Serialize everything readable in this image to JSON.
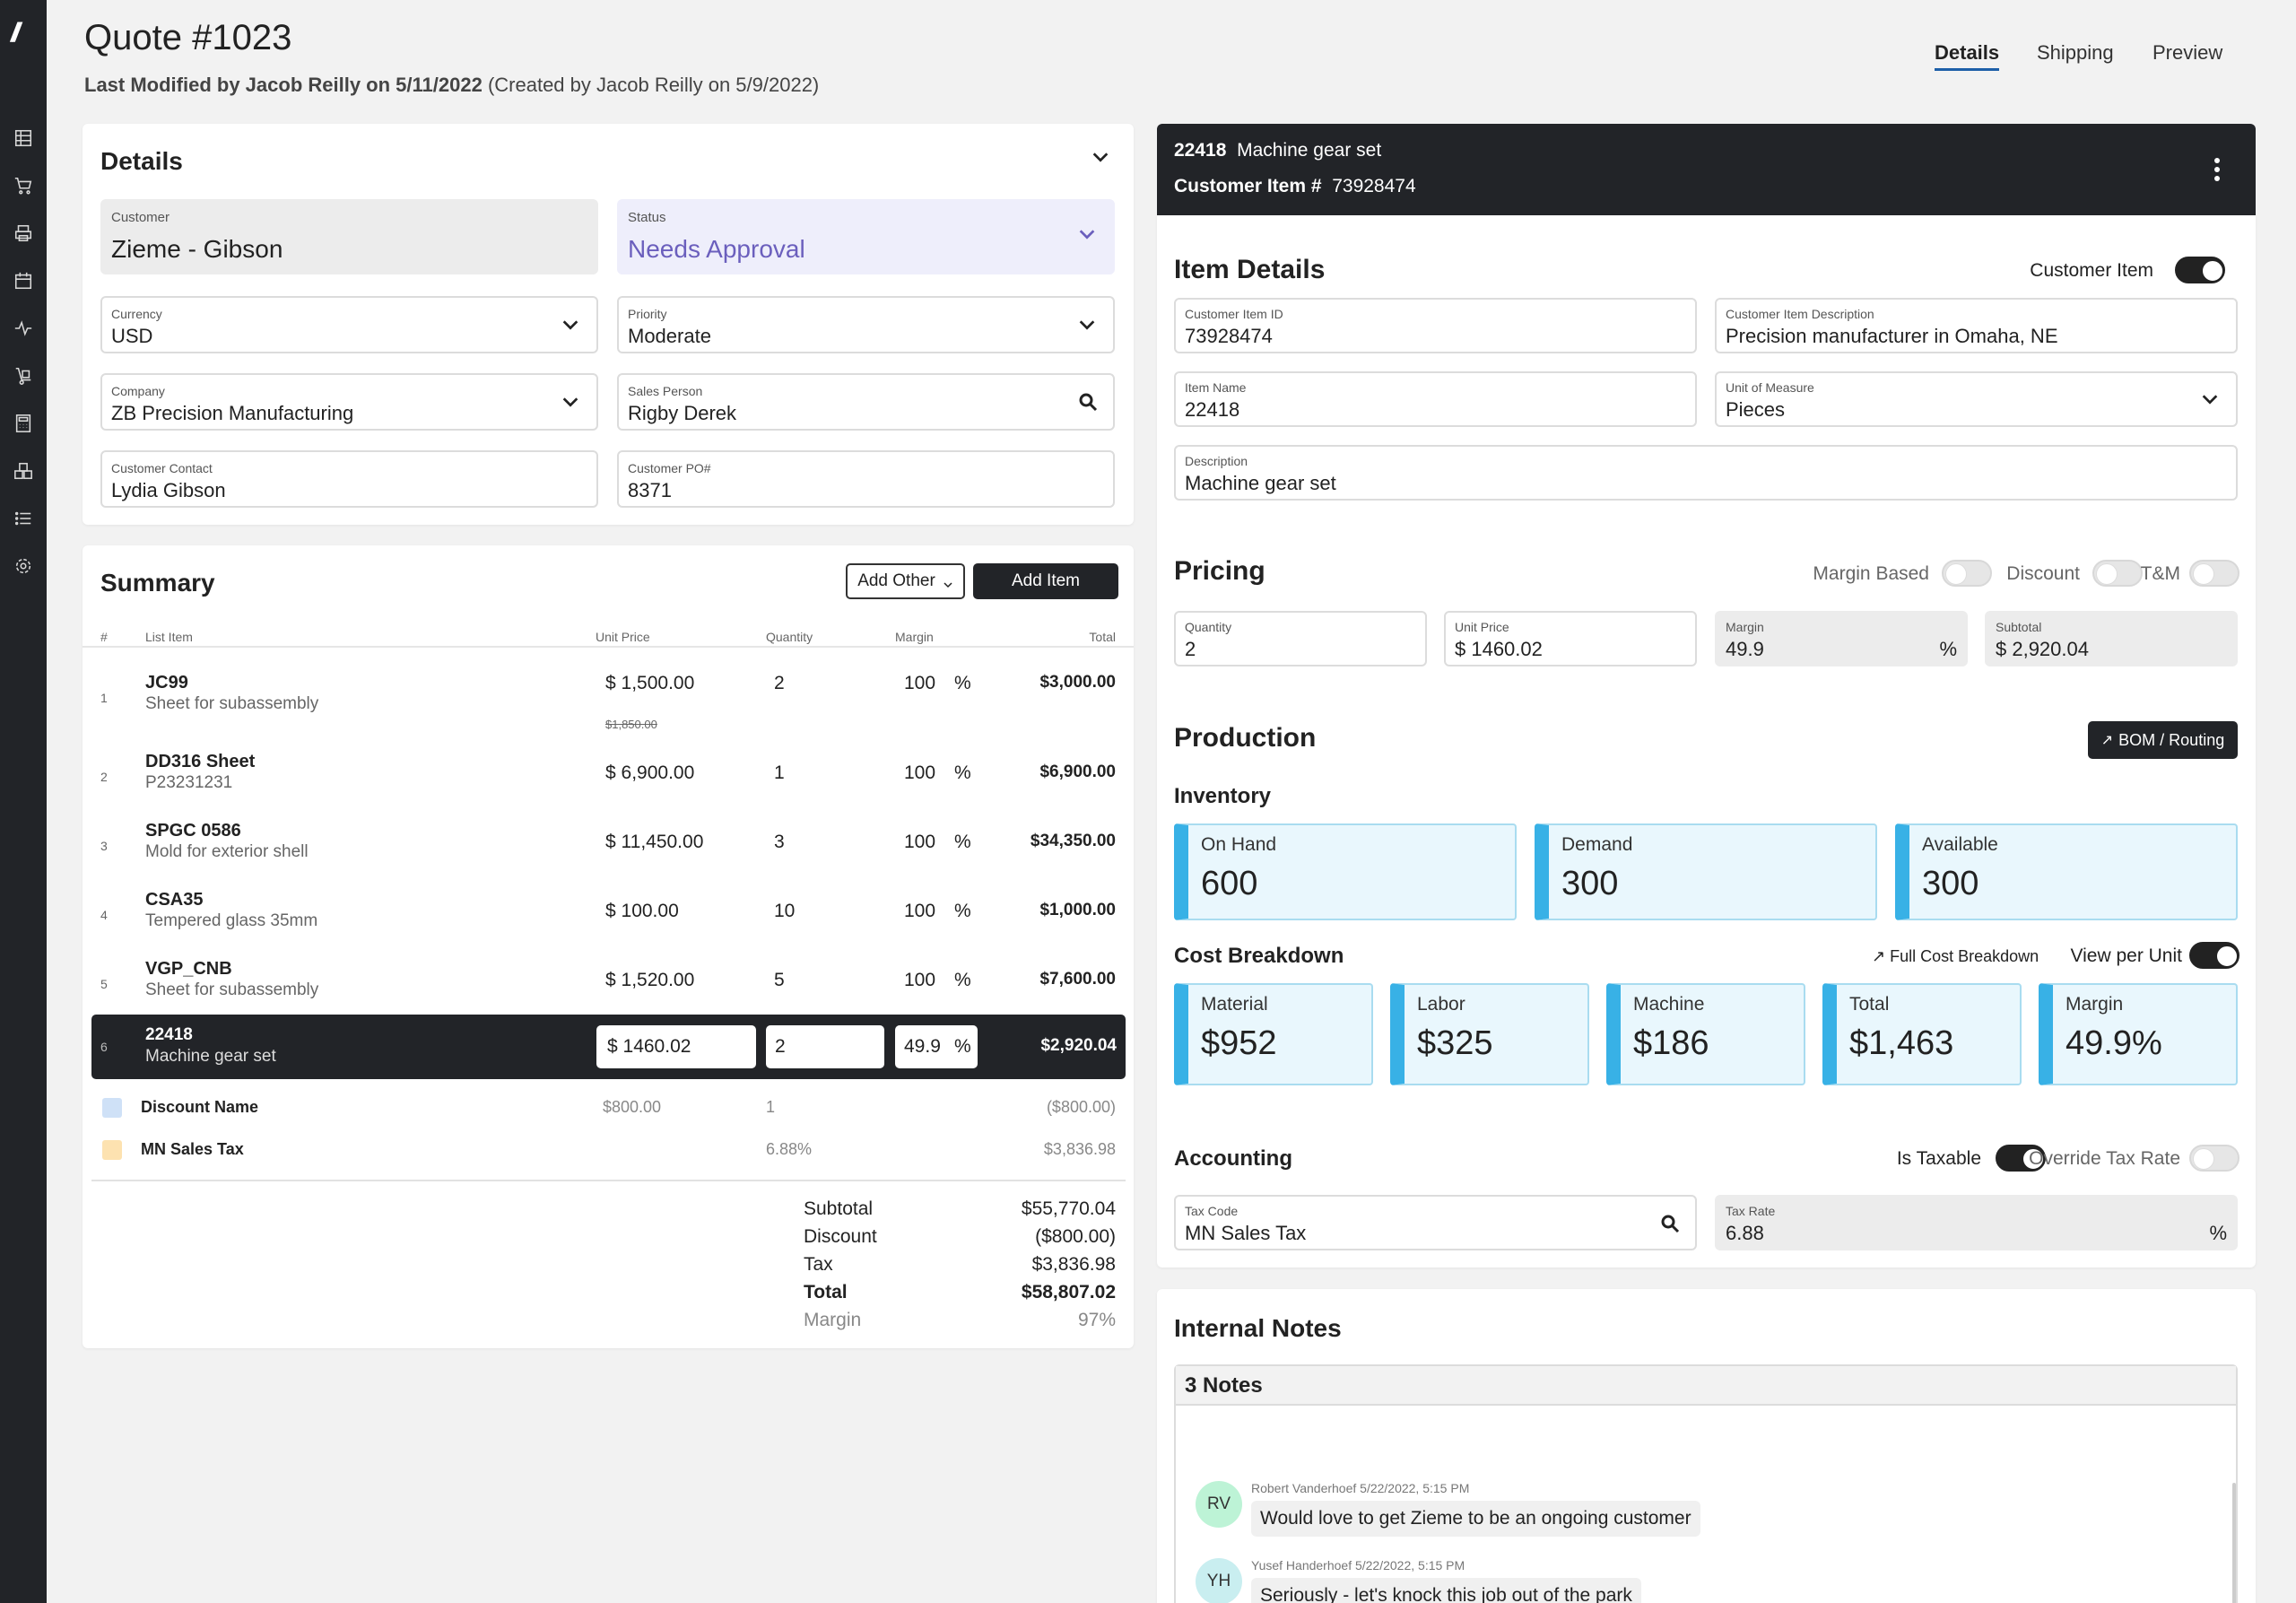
{
  "header": {
    "title": "Quote #1023",
    "modified_bold": "Last Modified by Jacob Reilly on 5/11/2022",
    "modified_rest": " (Created by Jacob Reilly on 5/9/2022)",
    "tabs": [
      {
        "label": "Details",
        "active": true
      },
      {
        "label": "Shipping",
        "active": false
      },
      {
        "label": "Preview",
        "active": false
      }
    ]
  },
  "rail_icons": [
    "logo-icon",
    "grid-icon",
    "cart-icon",
    "printer-icon",
    "calendar-icon",
    "activity-icon",
    "hand-truck-icon",
    "calculator-icon",
    "inventory-icon",
    "list-icon",
    "gear-icon"
  ],
  "details": {
    "title": "Details",
    "customer": {
      "label": "Customer",
      "value": "Zieme - Gibson"
    },
    "status": {
      "label": "Status",
      "value": "Needs Approval"
    },
    "currency": {
      "label": "Currency",
      "value": "USD"
    },
    "priority": {
      "label": "Priority",
      "value": "Moderate"
    },
    "company": {
      "label": "Company",
      "value": "ZB Precision Manufacturing"
    },
    "sales_person": {
      "label": "Sales Person",
      "value": "Rigby Derek"
    },
    "customer_contact": {
      "label": "Customer Contact",
      "value": "Lydia Gibson"
    },
    "customer_po": {
      "label": "Customer PO#",
      "value": "8371"
    }
  },
  "summary": {
    "title": "Summary",
    "add_other": "Add Other",
    "add_item": "Add Item",
    "columns": {
      "num": "#",
      "item": "List Item",
      "price": "Unit Price",
      "qty": "Quantity",
      "margin": "Margin",
      "total": "Total"
    },
    "rows": [
      {
        "num": "1",
        "name": "JC99",
        "desc": "Sheet for subassembly",
        "price": "$ 1,500.00",
        "old_price": "$1,850.00",
        "qty": "2",
        "margin": "100",
        "pct": "%",
        "total": "$3,000.00"
      },
      {
        "num": "2",
        "name": "DD316 Sheet",
        "desc": "P23231231",
        "price": "$ 6,900.00",
        "qty": "1",
        "margin": "100",
        "pct": "%",
        "total": "$6,900.00"
      },
      {
        "num": "3",
        "name": "SPGC 0586",
        "desc": "Mold for exterior shell",
        "price": "$ 11,450.00",
        "qty": "3",
        "margin": "100",
        "pct": "%",
        "total": "$34,350.00"
      },
      {
        "num": "4",
        "name": "CSA35",
        "desc": "Tempered glass 35mm",
        "price": "$ 100.00",
        "qty": "10",
        "margin": "100",
        "pct": "%",
        "total": "$1,000.00"
      },
      {
        "num": "5",
        "name": "VGP_CNB",
        "desc": "Sheet for subassembly",
        "price": "$ 1,520.00",
        "qty": "5",
        "margin": "100",
        "pct": "%",
        "total": "$7,600.00"
      }
    ],
    "selected": {
      "num": "6",
      "name": "22418",
      "desc": "Machine gear set",
      "price": "$ 1460.02",
      "qty": "2",
      "margin": "49.9",
      "pct": "%",
      "total": "$2,920.04"
    },
    "discount": {
      "name": "Discount Name",
      "price": "$800.00",
      "qty": "1",
      "total": "($800.00)",
      "color": "#cfe1f7"
    },
    "tax": {
      "name": "MN Sales Tax",
      "rate": "6.88%",
      "total": "$3,836.98",
      "color": "#fde2b0"
    },
    "totals": [
      {
        "label": "Subtotal",
        "value": "$55,770.04",
        "style": "normal"
      },
      {
        "label": "Discount",
        "value": "($800.00)",
        "style": "normal"
      },
      {
        "label": "Tax",
        "value": "$3,836.98",
        "style": "normal"
      },
      {
        "label": "Total",
        "value": "$58,807.02",
        "style": "bold"
      },
      {
        "label": "Margin",
        "value": "97%",
        "style": "muted"
      }
    ]
  },
  "item_header": {
    "code": "22418",
    "name": "Machine gear set",
    "cust_label": "Customer Item #",
    "cust_value": "73928474"
  },
  "item_details": {
    "title": "Item Details",
    "toggle_label": "Customer Item",
    "customer_item_id": {
      "label": "Customer Item ID",
      "value": "73928474"
    },
    "customer_item_desc": {
      "label": "Customer Item Description",
      "value": "Precision manufacturer in Omaha, NE"
    },
    "item_name": {
      "label": "Item Name",
      "value": "22418"
    },
    "uom": {
      "label": "Unit of Measure",
      "value": "Pieces"
    },
    "description": {
      "label": "Description",
      "value": "Machine gear set"
    }
  },
  "pricing": {
    "title": "Pricing",
    "toggles": {
      "margin_based": "Margin Based",
      "discount": "Discount",
      "tm": "T&M"
    },
    "quantity": {
      "label": "Quantity",
      "value": "2"
    },
    "unit_price": {
      "label": "Unit Price",
      "value": "$ 1460.02"
    },
    "margin": {
      "label": "Margin",
      "value": "49.9",
      "suffix": "%"
    },
    "subtotal": {
      "label": "Subtotal",
      "value": "$ 2,920.04"
    }
  },
  "production": {
    "title": "Production",
    "bom_button": "BOM / Routing",
    "inventory_title": "Inventory",
    "inventory": [
      {
        "label": "On Hand",
        "value": "600"
      },
      {
        "label": "Demand",
        "value": "300"
      },
      {
        "label": "Available",
        "value": "300"
      }
    ],
    "cost_title": "Cost Breakdown",
    "full_cost": "Full Cost Breakdown",
    "view_per_unit": "View per Unit",
    "costs": [
      {
        "label": "Material",
        "value": "$952"
      },
      {
        "label": "Labor",
        "value": "$325"
      },
      {
        "label": "Machine",
        "value": "$186"
      },
      {
        "label": "Total",
        "value": "$1,463"
      },
      {
        "label": "Margin",
        "value": "49.9%"
      }
    ]
  },
  "accounting": {
    "title": "Accounting",
    "is_taxable": "Is Taxable",
    "override": "Override Tax Rate",
    "tax_code": {
      "label": "Tax Code",
      "value": "MN Sales Tax"
    },
    "tax_rate": {
      "label": "Tax Rate",
      "value": "6.88",
      "suffix": "%"
    }
  },
  "notes": {
    "title": "Internal Notes",
    "count": "3 Notes",
    "items": [
      {
        "initials": "RV",
        "meta": "Robert Vanderhoef 5/22/2022, 5:15 PM",
        "text": "Would love to get Zieme to be an ongoing customer",
        "color": "#bdf3d6"
      },
      {
        "initials": "YH",
        "meta": "Yusef Handerhoef 5/22/2022, 5:15 PM",
        "text": "Seriously - let's knock this job out of the park",
        "color": "#c9eef0"
      }
    ]
  }
}
